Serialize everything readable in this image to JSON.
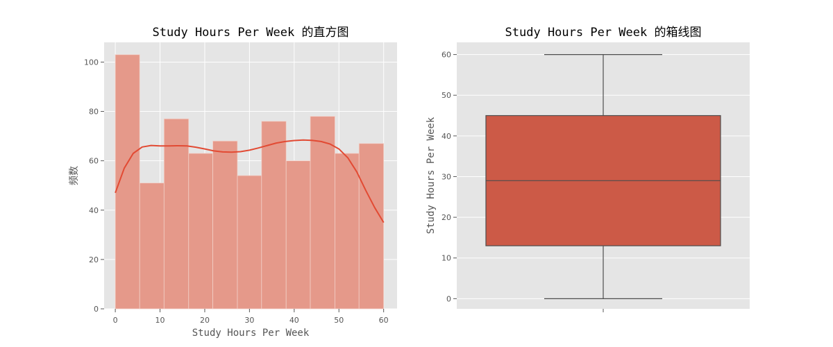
{
  "chart_data": [
    {
      "type": "bar",
      "title": "Study Hours Per Week 的直方图",
      "xlabel": "Study Hours Per Week",
      "ylabel": "频数",
      "xlim": [
        -2.5,
        63.0
      ],
      "ylim": [
        0,
        108
      ],
      "xticks": [
        0,
        10,
        20,
        30,
        40,
        50,
        60
      ],
      "yticks": [
        0,
        20,
        40,
        60,
        80,
        100
      ],
      "grid": true,
      "bin_edges": [
        0,
        5.45,
        10.9,
        16.4,
        21.8,
        27.3,
        32.7,
        38.2,
        43.6,
        49.1,
        54.5,
        60
      ],
      "values": [
        103,
        51,
        77,
        63,
        68,
        54,
        76,
        60,
        78,
        63,
        67
      ],
      "bar_color": "#e5998a",
      "kde_color": "#e24a33",
      "kde": {
        "x": [
          0,
          2,
          4,
          6,
          8,
          10,
          12,
          14,
          16,
          18,
          20,
          22,
          24,
          26,
          28,
          30,
          32,
          34,
          36,
          38,
          40,
          42,
          44,
          46,
          48,
          50,
          52,
          54,
          56,
          58,
          60
        ],
        "y": [
          47,
          57,
          63,
          65.6,
          66.2,
          66,
          66,
          66.1,
          66,
          65.5,
          64.8,
          64,
          63.6,
          63.5,
          63.7,
          64.3,
          65.2,
          66.2,
          67.2,
          67.8,
          68.2,
          68.4,
          68.3,
          67.8,
          66.8,
          64.8,
          61.2,
          55.5,
          48,
          41,
          35
        ]
      }
    },
    {
      "type": "box",
      "title": "Study Hours Per Week 的箱线图",
      "ylabel": "Study Hours Per Week",
      "ylim": [
        -2.5,
        63.0
      ],
      "yticks": [
        0,
        10,
        20,
        30,
        40,
        50,
        60
      ],
      "grid": true,
      "min": 0,
      "q1": 13,
      "median": 29,
      "q3": 45,
      "max": 60,
      "box_color": "#cc5a47"
    }
  ]
}
